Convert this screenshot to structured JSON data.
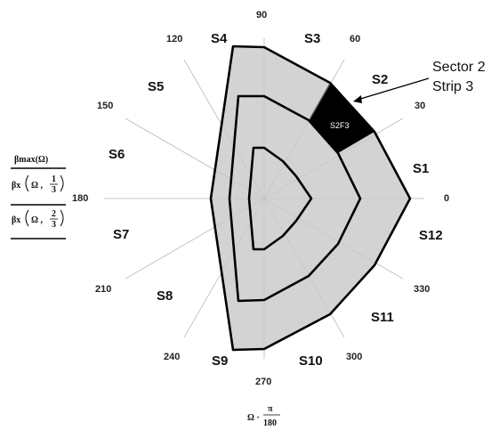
{
  "diagram": {
    "angle_labels": [
      "0",
      "30",
      "60",
      "90",
      "120",
      "150",
      "180",
      "210",
      "240",
      "270",
      "300",
      "330"
    ],
    "sector_labels": [
      "S1",
      "S2",
      "S3",
      "S4",
      "S5",
      "S6",
      "S7",
      "S8",
      "S9",
      "S10",
      "S11",
      "S12"
    ],
    "highlighted_cell_label": "S2F3",
    "callout": {
      "line1": "Sector 2",
      "line2": "Strip 3"
    },
    "legend": {
      "beta_max": "βmax(Ω)",
      "beta_x1": "βx",
      "beta_x1_args": "Ω ,",
      "frac1_num": "1",
      "frac1_den": "3",
      "beta_x2": "βx",
      "beta_x2_args": "Ω ,",
      "frac2_num": "2",
      "frac2_den": "3"
    },
    "axis_expr": {
      "prefix": "Ω ·",
      "num": "π",
      "den": "180"
    },
    "colors": {
      "region_fill": "#d3d3d3",
      "highlight_fill": "#000000",
      "outline": "#000000",
      "spokes": "#bdbdbd"
    }
  }
}
